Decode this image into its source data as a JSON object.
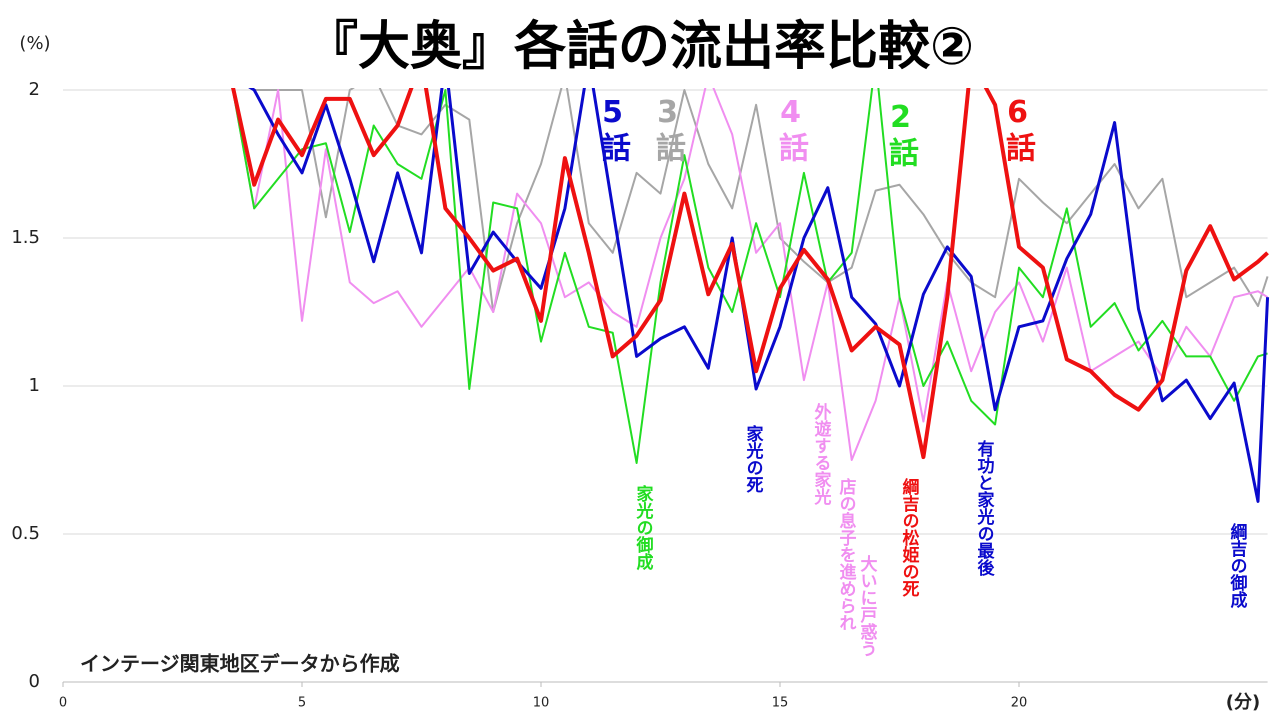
{
  "chart_data": {
    "type": "line",
    "title": "『大奥』各話の流出率比較②",
    "y_unit": "(%)",
    "x_unit": "(分)",
    "source": "インテージ関東地区データから作成",
    "x": [
      3.5,
      4,
      4.5,
      5,
      5.5,
      6,
      6.5,
      7,
      7.5,
      8,
      8.5,
      9,
      9.5,
      10,
      10.5,
      11,
      11.5,
      12,
      12.5,
      13,
      13.5,
      14,
      14.5,
      15,
      15.5,
      16,
      16.5,
      17,
      17.5,
      18,
      18.5,
      19,
      19.5,
      20,
      20.5,
      21,
      21.5,
      22,
      22.5,
      23,
      23.5,
      24,
      24.5,
      25,
      25.2
    ],
    "xlim": [
      0,
      25.2
    ],
    "xticks": [
      0,
      5,
      10,
      15,
      20
    ],
    "ylim": [
      0,
      2
    ],
    "yticks": [
      0,
      0.5,
      1,
      1.5,
      2
    ],
    "grid": true,
    "series": [
      {
        "name": "3話",
        "color": "#a6a6a6",
        "values": [
          2.05,
          2.0,
          2.0,
          2.0,
          1.57,
          2.0,
          2.05,
          1.88,
          1.85,
          1.95,
          1.9,
          1.25,
          1.55,
          1.75,
          2.05,
          1.55,
          1.45,
          1.72,
          1.65,
          2.0,
          1.75,
          1.6,
          1.95,
          1.5,
          1.42,
          1.35,
          1.4,
          1.66,
          1.68,
          1.58,
          1.45,
          1.35,
          1.3,
          1.7,
          1.62,
          1.55,
          1.65,
          1.75,
          1.6,
          1.7,
          1.3,
          1.35,
          1.4,
          1.27,
          1.37
        ]
      },
      {
        "name": "4話",
        "color": "#f08ef0",
        "values": [
          2.05,
          1.6,
          2.0,
          1.22,
          1.8,
          1.35,
          1.28,
          1.32,
          1.2,
          1.3,
          1.4,
          1.25,
          1.65,
          1.55,
          1.3,
          1.35,
          1.25,
          1.2,
          1.5,
          1.7,
          2.05,
          1.85,
          1.45,
          1.55,
          1.02,
          1.35,
          0.75,
          0.95,
          1.3,
          0.88,
          1.35,
          1.05,
          1.25,
          1.35,
          1.15,
          1.4,
          1.05,
          1.1,
          1.15,
          1.03,
          1.2,
          1.1,
          1.3,
          1.32,
          1.3
        ]
      },
      {
        "name": "2話",
        "color": "#22dd22",
        "values": [
          2.05,
          1.6,
          1.7,
          1.8,
          1.82,
          1.52,
          1.88,
          1.75,
          1.7,
          2.0,
          0.99,
          1.62,
          1.6,
          1.15,
          1.45,
          1.2,
          1.18,
          0.74,
          1.35,
          1.78,
          1.4,
          1.25,
          1.55,
          1.3,
          1.72,
          1.35,
          1.45,
          2.1,
          1.3,
          1.0,
          1.15,
          0.95,
          0.87,
          1.4,
          1.3,
          1.6,
          1.2,
          1.28,
          1.12,
          1.22,
          1.1,
          1.1,
          0.95,
          1.1,
          1.11
        ]
      },
      {
        "name": "5話",
        "color": "#0a0acc",
        "values": [
          2.05,
          2.0,
          1.85,
          1.72,
          1.95,
          1.7,
          1.42,
          1.72,
          1.45,
          2.1,
          1.38,
          1.52,
          1.42,
          1.33,
          1.6,
          2.1,
          1.6,
          1.1,
          1.16,
          1.2,
          1.06,
          1.5,
          0.99,
          1.2,
          1.5,
          1.67,
          1.3,
          1.21,
          1.0,
          1.31,
          1.47,
          1.37,
          0.92,
          1.2,
          1.22,
          1.43,
          1.58,
          1.89,
          1.26,
          0.95,
          1.02,
          0.89,
          1.01,
          0.61,
          1.3
        ]
      },
      {
        "name": "6話",
        "color": "#ee1111",
        "values": [
          2.05,
          1.68,
          1.9,
          1.78,
          1.97,
          1.97,
          1.78,
          1.88,
          2.1,
          1.6,
          1.5,
          1.39,
          1.43,
          1.22,
          1.77,
          1.45,
          1.1,
          1.17,
          1.29,
          1.65,
          1.31,
          1.48,
          1.05,
          1.33,
          1.46,
          1.36,
          1.12,
          1.2,
          1.14,
          0.76,
          1.3,
          2.1,
          1.95,
          1.47,
          1.4,
          1.09,
          1.05,
          0.97,
          0.92,
          1.02,
          1.39,
          1.54,
          1.36,
          1.42,
          1.45
        ]
      }
    ],
    "annotations": [
      {
        "text": "家光の御成",
        "color": "#22dd22"
      },
      {
        "text": "家光の死",
        "color": "#0a0acc"
      },
      {
        "text": "外遊する家光",
        "color": "#f08ef0"
      },
      {
        "text": "店の息子を進められ",
        "color": "#f08ef0"
      },
      {
        "text": "大いに戸惑う",
        "color": "#f08ef0"
      },
      {
        "text": "綱吉の松姫の死",
        "color": "#ee1111"
      },
      {
        "text": "有功と家光の最後",
        "color": "#0a0acc"
      },
      {
        "text": "綱吉の御成",
        "color": "#0a0acc"
      }
    ]
  }
}
